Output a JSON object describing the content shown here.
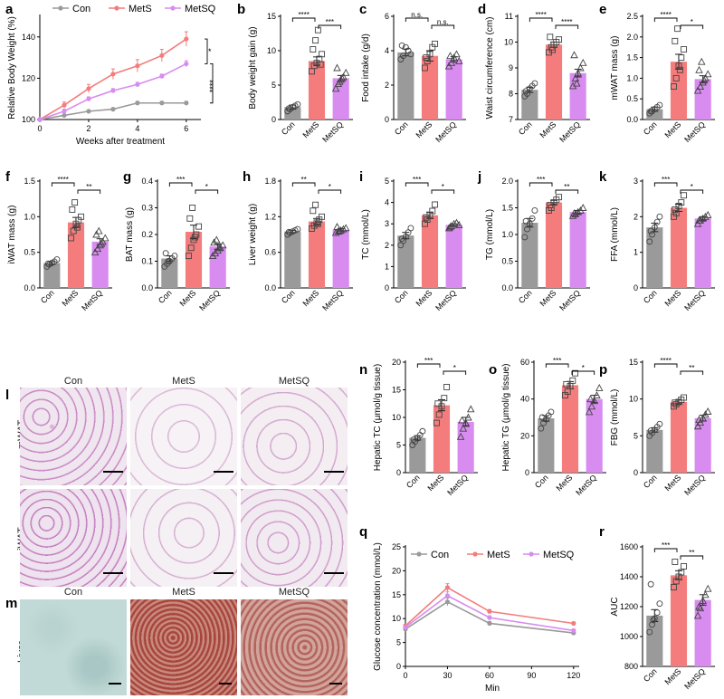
{
  "colors": {
    "Con": "#9a9a9a",
    "MetS": "#f47c7c",
    "MetSQ": "#d88cf0"
  },
  "groups": [
    "Con",
    "MetS",
    "MetSQ"
  ],
  "histology": {
    "l_letter": "l",
    "m_letter": "m",
    "col_labels": [
      "Con",
      "MetS",
      "MetSQ"
    ],
    "l_rows": [
      "mWAT",
      "iWAT"
    ],
    "m_row": "Liver"
  },
  "chart_data": [
    {
      "id": "a",
      "type": "line",
      "xlabel": "Weeks after treatment",
      "ylabel": "Relative Body Weight (%)",
      "x": [
        0,
        1,
        2,
        3,
        4,
        5,
        6
      ],
      "xlim": [
        0,
        6.6
      ],
      "ylim": [
        100,
        150
      ],
      "xticks": [
        0,
        2,
        4,
        6
      ],
      "yticks": [
        100,
        120,
        140
      ],
      "legend": [
        "Con",
        "MetS",
        "MetSQ"
      ],
      "series": [
        {
          "name": "Con",
          "values": [
            100,
            102,
            104,
            105,
            108,
            108,
            108
          ],
          "err": [
            0,
            0.6,
            0.6,
            0.6,
            0.8,
            0.8,
            0.8
          ]
        },
        {
          "name": "MetS",
          "values": [
            100,
            107,
            115,
            122,
            126,
            131,
            139
          ],
          "err": [
            0,
            1.5,
            2,
            2.5,
            3,
            3,
            3.5
          ]
        },
        {
          "name": "MetSQ",
          "values": [
            100,
            104,
            110,
            114,
            117,
            121,
            127
          ],
          "err": [
            0,
            1,
            1,
            1,
            1,
            1,
            1.5
          ]
        }
      ],
      "annotations": [
        "*",
        "****"
      ]
    },
    {
      "id": "b",
      "type": "bar",
      "ylabel": "Body weight gain (g)",
      "ylim": [
        0,
        15
      ],
      "yticks": [
        0,
        5,
        10,
        15
      ],
      "categories": [
        "Con",
        "MetS",
        "MetSQ"
      ],
      "values": [
        1.8,
        8.5,
        6.0
      ],
      "err": [
        0.3,
        0.6,
        0.4
      ],
      "points": [
        [
          1.2,
          1.5,
          1.8,
          2.0,
          2.2,
          1.6
        ],
        [
          7.0,
          7.8,
          8.2,
          8.8,
          9.5,
          10.2,
          11.5,
          13.0,
          8.0
        ],
        [
          4.5,
          5.2,
          5.8,
          6.2,
          6.8,
          7.5,
          5.5,
          6.0
        ]
      ],
      "sig": [
        {
          "from": 0,
          "to": 1,
          "label": "****"
        },
        {
          "from": 1,
          "to": 2,
          "label": "***"
        }
      ]
    },
    {
      "id": "c",
      "type": "bar",
      "ylabel": "Food intake (g/d)",
      "ylim": [
        0,
        6
      ],
      "yticks": [
        0,
        2,
        4,
        6
      ],
      "categories": [
        "Con",
        "MetS",
        "MetSQ"
      ],
      "values": [
        3.9,
        3.7,
        3.5
      ],
      "err": [
        0.2,
        0.3,
        0.15
      ],
      "points": [
        [
          3.5,
          3.7,
          4.2,
          4.0,
          3.8,
          4.3
        ],
        [
          3.0,
          3.4,
          3.8,
          4.2,
          4.4,
          3.6
        ],
        [
          3.1,
          3.3,
          3.6,
          3.8,
          3.4,
          3.7
        ]
      ],
      "sig": [
        {
          "from": 0,
          "to": 1,
          "label": "n.s."
        },
        {
          "from": 1,
          "to": 2,
          "label": "n.s."
        }
      ]
    },
    {
      "id": "d",
      "type": "bar",
      "ylabel": "Waist circumference (cm)",
      "ylim": [
        7,
        11
      ],
      "yticks": [
        7,
        8,
        9,
        10,
        11
      ],
      "categories": [
        "Con",
        "MetS",
        "MetSQ"
      ],
      "values": [
        8.15,
        9.9,
        8.8
      ],
      "err": [
        0.1,
        0.1,
        0.15
      ],
      "points": [
        [
          7.9,
          8.0,
          8.2,
          8.3,
          8.4,
          8.1
        ],
        [
          9.6,
          9.8,
          9.9,
          10.0,
          10.1,
          10.2,
          9.7
        ],
        [
          8.3,
          8.6,
          8.8,
          9.0,
          9.2,
          9.5,
          8.4
        ]
      ],
      "sig": [
        {
          "from": 0,
          "to": 1,
          "label": "****"
        },
        {
          "from": 1,
          "to": 2,
          "label": "****"
        }
      ]
    },
    {
      "id": "e",
      "type": "bar",
      "ylabel": "mWAT mass (g)",
      "ylim": [
        0,
        2.5
      ],
      "yticks": [
        0.0,
        0.5,
        1.0,
        1.5,
        2.0,
        2.5
      ],
      "categories": [
        "Con",
        "MetS",
        "MetSQ"
      ],
      "values": [
        0.25,
        1.4,
        0.98
      ],
      "err": [
        0.05,
        0.18,
        0.08
      ],
      "points": [
        [
          0.15,
          0.2,
          0.25,
          0.3,
          0.35,
          0.2
        ],
        [
          0.8,
          1.0,
          1.3,
          1.5,
          1.7,
          1.9,
          2.2,
          1.2
        ],
        [
          0.7,
          0.8,
          0.9,
          1.0,
          1.1,
          1.2,
          1.4,
          0.95
        ]
      ],
      "sig": [
        {
          "from": 0,
          "to": 1,
          "label": "****"
        },
        {
          "from": 1,
          "to": 2,
          "label": "*"
        }
      ]
    },
    {
      "id": "f",
      "type": "bar",
      "ylabel": "iWAT mass (g)",
      "ylim": [
        0,
        1.5
      ],
      "yticks": [
        0.0,
        0.5,
        1.0,
        1.5
      ],
      "categories": [
        "Con",
        "MetS",
        "MetSQ"
      ],
      "values": [
        0.35,
        0.92,
        0.65
      ],
      "err": [
        0.02,
        0.07,
        0.04
      ],
      "points": [
        [
          0.3,
          0.33,
          0.35,
          0.37,
          0.4,
          0.34
        ],
        [
          0.7,
          0.8,
          0.9,
          0.95,
          1.0,
          1.1,
          1.2,
          0.85
        ],
        [
          0.5,
          0.55,
          0.6,
          0.65,
          0.7,
          0.75,
          0.8,
          0.62
        ]
      ],
      "sig": [
        {
          "from": 0,
          "to": 1,
          "label": "****"
        },
        {
          "from": 1,
          "to": 2,
          "label": "**"
        }
      ]
    },
    {
      "id": "g",
      "type": "bar",
      "ylabel": "BAT mass (g)",
      "ylim": [
        0,
        0.4
      ],
      "yticks": [
        0.0,
        0.1,
        0.2,
        0.3,
        0.4
      ],
      "categories": [
        "Con",
        "MetS",
        "MetSQ"
      ],
      "values": [
        0.11,
        0.21,
        0.155
      ],
      "err": [
        0.01,
        0.025,
        0.01
      ],
      "points": [
        [
          0.08,
          0.09,
          0.1,
          0.11,
          0.12,
          0.13,
          0.1
        ],
        [
          0.12,
          0.15,
          0.18,
          0.2,
          0.23,
          0.26,
          0.3,
          0.19
        ],
        [
          0.12,
          0.13,
          0.14,
          0.15,
          0.16,
          0.17,
          0.18,
          0.15
        ]
      ],
      "sig": [
        {
          "from": 0,
          "to": 1,
          "label": "***"
        },
        {
          "from": 1,
          "to": 2,
          "label": "*"
        }
      ]
    },
    {
      "id": "h",
      "type": "bar",
      "ylabel": "Liver weight (g)",
      "ylim": [
        0,
        1.8
      ],
      "yticks": [
        0.0,
        0.6,
        1.2,
        1.8
      ],
      "categories": [
        "Con",
        "MetS",
        "MetSQ"
      ],
      "values": [
        0.95,
        1.12,
        0.98
      ],
      "err": [
        0.02,
        0.05,
        0.02
      ],
      "points": [
        [
          0.9,
          0.93,
          0.95,
          0.97,
          0.99,
          0.94
        ],
        [
          1.0,
          1.05,
          1.1,
          1.15,
          1.2,
          1.3,
          1.4,
          1.08
        ],
        [
          0.93,
          0.95,
          0.97,
          0.99,
          1.01,
          1.03,
          0.96
        ]
      ],
      "sig": [
        {
          "from": 0,
          "to": 1,
          "label": "**"
        },
        {
          "from": 1,
          "to": 2,
          "label": "*"
        }
      ]
    },
    {
      "id": "i",
      "type": "bar",
      "ylabel": "TC (mmol/L)",
      "ylim": [
        0,
        5
      ],
      "yticks": [
        0,
        1,
        2,
        3,
        4,
        5
      ],
      "categories": [
        "Con",
        "MetS",
        "MetSQ"
      ],
      "values": [
        2.45,
        3.4,
        2.95
      ],
      "err": [
        0.15,
        0.15,
        0.05
      ],
      "points": [
        [
          2.0,
          2.2,
          2.4,
          2.6,
          2.8,
          2.3
        ],
        [
          3.0,
          3.2,
          3.4,
          3.6,
          3.9,
          3.3
        ],
        [
          2.8,
          2.9,
          3.0,
          3.05,
          2.95,
          2.85
        ]
      ],
      "sig": [
        {
          "from": 0,
          "to": 1,
          "label": "***"
        },
        {
          "from": 1,
          "to": 2,
          "label": "*"
        }
      ]
    },
    {
      "id": "j",
      "type": "bar",
      "ylabel": "TG (mmol/L)",
      "ylim": [
        0,
        2.0
      ],
      "yticks": [
        0.0,
        0.5,
        1.0,
        1.5,
        2.0
      ],
      "categories": [
        "Con",
        "MetS",
        "MetSQ"
      ],
      "values": [
        1.22,
        1.6,
        1.42
      ],
      "err": [
        0.08,
        0.04,
        0.03
      ],
      "points": [
        [
          0.95,
          1.1,
          1.2,
          1.3,
          1.45,
          1.25
        ],
        [
          1.45,
          1.5,
          1.6,
          1.65,
          1.7,
          1.55
        ],
        [
          1.35,
          1.38,
          1.42,
          1.45,
          1.5,
          1.4
        ]
      ],
      "sig": [
        {
          "from": 0,
          "to": 1,
          "label": "***"
        },
        {
          "from": 1,
          "to": 2,
          "label": "**"
        }
      ]
    },
    {
      "id": "k",
      "type": "bar",
      "ylabel": "FFA (mmol/L)",
      "ylim": [
        0,
        3
      ],
      "yticks": [
        0,
        1,
        2,
        3
      ],
      "categories": [
        "Con",
        "MetS",
        "MetSQ"
      ],
      "values": [
        1.7,
        2.25,
        1.95
      ],
      "err": [
        0.12,
        0.1,
        0.05
      ],
      "points": [
        [
          1.3,
          1.5,
          1.7,
          1.85,
          2.0,
          1.6
        ],
        [
          2.0,
          2.1,
          2.3,
          2.4,
          2.6,
          2.2
        ],
        [
          1.8,
          1.9,
          1.95,
          2.0,
          2.05,
          1.9
        ]
      ],
      "sig": [
        {
          "from": 0,
          "to": 1,
          "label": "***"
        },
        {
          "from": 1,
          "to": 2,
          "label": "*"
        }
      ]
    },
    {
      "id": "n",
      "type": "bar",
      "ylabel": "Hepatic TC (μmol/g tissue)",
      "ylim": [
        0,
        20
      ],
      "yticks": [
        0,
        5,
        10,
        15,
        20
      ],
      "categories": [
        "Con",
        "MetS",
        "MetSQ"
      ],
      "values": [
        6.3,
        12.2,
        9.2
      ],
      "err": [
        0.4,
        1.0,
        0.8
      ],
      "points": [
        [
          5.0,
          5.6,
          6.2,
          6.8,
          7.5,
          6.0
        ],
        [
          9.0,
          10.5,
          12.0,
          13.5,
          15.5,
          12.5
        ],
        [
          6.5,
          8.0,
          9.0,
          10.0,
          11.5,
          9.5
        ]
      ],
      "sig": [
        {
          "from": 0,
          "to": 1,
          "label": "***"
        },
        {
          "from": 1,
          "to": 2,
          "label": "*"
        }
      ]
    },
    {
      "id": "o",
      "type": "bar",
      "ylabel": "Hepatic TG (μmol/g tissue)",
      "ylim": [
        0,
        60
      ],
      "yticks": [
        0,
        20,
        40,
        60
      ],
      "categories": [
        "Con",
        "MetS",
        "MetSQ"
      ],
      "values": [
        29.5,
        47.5,
        40.0
      ],
      "err": [
        1.5,
        2.0,
        2.0
      ],
      "points": [
        [
          24,
          27,
          29,
          31,
          33,
          30
        ],
        [
          42,
          44,
          47,
          50,
          54,
          48
        ],
        [
          33,
          36,
          39,
          42,
          46,
          40
        ]
      ],
      "sig": [
        {
          "from": 0,
          "to": 1,
          "label": "***"
        },
        {
          "from": 1,
          "to": 2,
          "label": "*"
        }
      ]
    },
    {
      "id": "p",
      "type": "bar",
      "ylabel": "FBG (mmol/L)",
      "ylim": [
        0,
        15
      ],
      "yticks": [
        0,
        5,
        10,
        15
      ],
      "categories": [
        "Con",
        "MetS",
        "MetSQ"
      ],
      "values": [
        5.8,
        9.6,
        7.4
      ],
      "err": [
        0.3,
        0.25,
        0.4
      ],
      "points": [
        [
          5.0,
          5.4,
          5.8,
          6.2,
          6.6,
          5.7
        ],
        [
          9.0,
          9.3,
          9.6,
          9.9,
          10.2,
          9.5
        ],
        [
          6.3,
          6.8,
          7.4,
          7.9,
          8.3,
          7.2
        ]
      ],
      "sig": [
        {
          "from": 0,
          "to": 1,
          "label": "****"
        },
        {
          "from": 1,
          "to": 2,
          "label": "**"
        }
      ]
    },
    {
      "id": "q",
      "type": "line",
      "xlabel": "Min",
      "ylabel": "Glucose concentration (mmol/L)",
      "x": [
        0,
        30,
        60,
        120
      ],
      "xlim": [
        0,
        124
      ],
      "ylim": [
        0,
        25
      ],
      "xticks": [
        0,
        30,
        60,
        90,
        120
      ],
      "yticks": [
        0,
        5,
        10,
        15,
        20,
        25
      ],
      "legend": [
        "Con",
        "MetS",
        "MetSQ"
      ],
      "series": [
        {
          "name": "Con",
          "values": [
            7.8,
            13.5,
            9.0,
            7.0
          ],
          "err": [
            0.2,
            0.8,
            0.4,
            0.3
          ]
        },
        {
          "name": "MetS",
          "values": [
            8.5,
            16.5,
            11.5,
            9.0
          ],
          "err": [
            0.3,
            0.8,
            0.4,
            0.3
          ]
        },
        {
          "name": "MetSQ",
          "values": [
            8.2,
            14.8,
            10.2,
            7.5
          ],
          "err": [
            0.3,
            0.8,
            0.4,
            0.3
          ]
        }
      ]
    },
    {
      "id": "r",
      "type": "bar",
      "ylabel": "AUC",
      "ylim": [
        800,
        1600
      ],
      "yticks": [
        800,
        1000,
        1200,
        1400,
        1600
      ],
      "categories": [
        "Con",
        "MetS",
        "MetSQ"
      ],
      "values": [
        1140,
        1410,
        1245
      ],
      "err": [
        40,
        30,
        35
      ],
      "points": [
        [
          1030,
          1080,
          1120,
          1160,
          1220,
          1350,
          1110
        ],
        [
          1330,
          1370,
          1400,
          1430,
          1470,
          1500
        ],
        [
          1140,
          1190,
          1240,
          1280,
          1320,
          1200
        ]
      ],
      "sig": [
        {
          "from": 0,
          "to": 1,
          "label": "***"
        },
        {
          "from": 1,
          "to": 2,
          "label": "**"
        }
      ]
    }
  ]
}
